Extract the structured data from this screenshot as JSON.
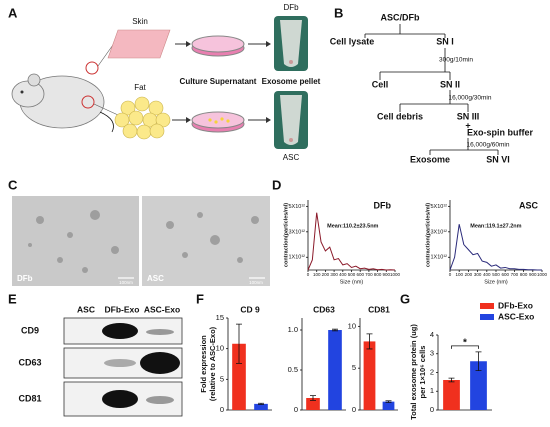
{
  "panel_labels": [
    "A",
    "B",
    "C",
    "D",
    "E",
    "F",
    "G"
  ],
  "panel_a": {
    "skin": "Skin",
    "fat": "Fat",
    "culture_supernatant": "Culture Supernatant",
    "exosome_pellet": "Exosome pellet",
    "tube_top": "DFb",
    "tube_bottom": "ASC"
  },
  "panel_b": {
    "items": [
      "ASC/DFb",
      "Cell lysate",
      "SN I",
      "300g/10min",
      "Cell",
      "SN II",
      "16,000g/30min",
      "Cell debris",
      "SN III",
      "+",
      "Exo-spin buffer",
      "16,000g/60min",
      "Exosome",
      "SN VI"
    ]
  },
  "panel_c": {
    "images": [
      {
        "label": "DFb",
        "scale": "100nm"
      },
      {
        "label": "ASC",
        "scale": "100nm"
      }
    ]
  },
  "panel_d": {
    "charts": [
      {
        "type": "line",
        "label": "DFb",
        "annotation": "Mean:110.2±23.5nm",
        "ylabel": "contraction(particles/ml)",
        "xlabel": "Size (nm)",
        "color": "#8b1a2a",
        "x": [
          0,
          50,
          100,
          150,
          200,
          250,
          300,
          350,
          400,
          450,
          500,
          550,
          600,
          650,
          700,
          750,
          800,
          850,
          900,
          950,
          1000
        ],
        "values": [
          0,
          800000000000.0,
          4500000000000.0,
          2200000000000.0,
          1500000000000.0,
          1800000000000.0,
          800000000000.0,
          900000000000.0,
          400000000000.0,
          500000000000.0,
          200000000000.0,
          300000000000.0,
          100000000000.0,
          150000000000.0,
          50000000000.0,
          100000000000.0,
          20000000000.0,
          50000000000.0,
          0,
          20000000000.0,
          0
        ],
        "xlim": [
          0,
          1000
        ],
        "ylim": [
          0,
          5500000000000.0
        ],
        "xticks": [
          0,
          100,
          200,
          300,
          400,
          500,
          600,
          700,
          800,
          900,
          1000
        ],
        "yticks": [
          {
            "value": 1000000000000.0,
            "label": "1X10¹²"
          },
          {
            "value": 3000000000000.0,
            "label": "3X10¹²"
          },
          {
            "value": 5000000000000.0,
            "label": "5X10¹²"
          }
        ]
      },
      {
        "type": "line",
        "label": "ASC",
        "annotation": "Mean:119.1±27.2nm",
        "ylabel": "contraction(particles/ml)",
        "xlabel": "Size (nm)",
        "color": "#2a2a7a",
        "x": [
          0,
          50,
          100,
          150,
          200,
          250,
          300,
          350,
          400,
          450,
          500,
          550,
          600,
          650,
          700,
          750,
          800,
          850,
          900,
          950,
          1000
        ],
        "values": [
          0,
          1000000000000.0,
          3600000000000.0,
          2000000000000.0,
          1600000000000.0,
          1200000000000.0,
          1300000000000.0,
          700000000000.0,
          600000000000.0,
          300000000000.0,
          400000000000.0,
          150000000000.0,
          200000000000.0,
          100000000000.0,
          100000000000.0,
          50000000000.0,
          50000000000.0,
          20000000000.0,
          20000000000.0,
          0,
          0
        ],
        "xlim": [
          0,
          1000
        ],
        "ylim": [
          0,
          5500000000000.0
        ],
        "xticks": [
          0,
          100,
          200,
          300,
          400,
          500,
          600,
          700,
          800,
          900,
          1000
        ],
        "yticks": [
          {
            "value": 1000000000000.0,
            "label": "1X10¹²"
          },
          {
            "value": 3000000000000.0,
            "label": "3X10¹²"
          },
          {
            "value": 5000000000000.0,
            "label": "5X10¹²"
          }
        ]
      }
    ]
  },
  "panel_e": {
    "columns": [
      "ASC",
      "DFb-Exo",
      "ASC-Exo"
    ],
    "rows": [
      "CD9",
      "CD63",
      "CD81"
    ]
  },
  "panel_f": {
    "ylabel": [
      "Fold expression",
      "(relative to ASC-Exo)"
    ],
    "charts": [
      {
        "type": "bar",
        "title": "CD 9",
        "values": [
          10.8,
          1
        ],
        "errors": [
          3.2,
          0.1
        ],
        "colors": [
          "#f0301e",
          "#2244e0"
        ],
        "ylim": [
          0,
          15
        ],
        "yticks": [
          0,
          5,
          10,
          15
        ]
      },
      {
        "type": "bar",
        "title": "CD63",
        "values": [
          0.15,
          1
        ],
        "errors": [
          0.03,
          0.01
        ],
        "colors": [
          "#f0301e",
          "#2244e0"
        ],
        "ylim": [
          0,
          1.15
        ],
        "yticks": [
          0,
          0.5,
          {
            "value": 1,
            "label": "1.0"
          }
        ]
      },
      {
        "type": "bar",
        "title": "CD81",
        "values": [
          8.2,
          1
        ],
        "errors": [
          0.9,
          0.1
        ],
        "colors": [
          "#f0301e",
          "#2244e0"
        ],
        "ylim": [
          0,
          11
        ],
        "yticks": [
          0,
          5,
          10
        ]
      }
    ]
  },
  "panel_g": {
    "type": "bar",
    "ylabel": [
      "Total exosome protein (ug)",
      "per 1×10⁶ cells"
    ],
    "categories": [
      "DFb-Exo",
      "ASC-Exo"
    ],
    "colors": [
      "#f0301e",
      "#2244e0"
    ],
    "values": [
      1.6,
      2.6
    ],
    "errors": [
      0.1,
      0.5
    ],
    "ylim": [
      0,
      4
    ],
    "yticks": [
      0,
      1,
      2,
      3,
      4
    ],
    "annotation": "*"
  }
}
